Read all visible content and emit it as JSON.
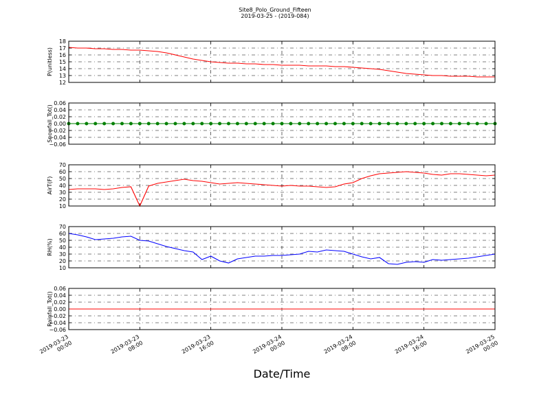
{
  "title": "Site8_Polo_Ground_Fifteen",
  "subtitle": "2019-03-25 - (2019-084)",
  "x_axis": {
    "label": "Date/Time",
    "lim": [
      "2019-03-23 00:00",
      "2019-03-25 00:00"
    ],
    "ticks": [
      "2019-03-23 00:00",
      "2019-03-23 08:00",
      "2019-03-23 16:00",
      "2019-03-24 00:00",
      "2019-03-24 08:00",
      "2019-03-24 16:00",
      "2019-03-25 00:00"
    ]
  },
  "chart_data": [
    {
      "type": "line",
      "ylabel": "P(unitless)",
      "color": "#ff0000",
      "grid": true,
      "ylim": [
        12,
        18
      ],
      "yticks": [
        12,
        13,
        14,
        15,
        16,
        17,
        18
      ],
      "x": [
        "2019-03-23 00:00",
        "2019-03-23 01:00",
        "2019-03-23 02:00",
        "2019-03-23 03:00",
        "2019-03-23 04:00",
        "2019-03-23 05:00",
        "2019-03-23 06:00",
        "2019-03-23 07:00",
        "2019-03-23 08:00",
        "2019-03-23 09:00",
        "2019-03-23 10:00",
        "2019-03-23 11:00",
        "2019-03-23 12:00",
        "2019-03-23 13:00",
        "2019-03-23 14:00",
        "2019-03-23 15:00",
        "2019-03-23 16:00",
        "2019-03-23 17:00",
        "2019-03-23 18:00",
        "2019-03-23 19:00",
        "2019-03-23 20:00",
        "2019-03-23 21:00",
        "2019-03-23 22:00",
        "2019-03-23 23:00",
        "2019-03-24 00:00",
        "2019-03-24 01:00",
        "2019-03-24 02:00",
        "2019-03-24 03:00",
        "2019-03-24 04:00",
        "2019-03-24 05:00",
        "2019-03-24 06:00",
        "2019-03-24 07:00",
        "2019-03-24 08:00",
        "2019-03-24 09:00",
        "2019-03-24 10:00",
        "2019-03-24 11:00",
        "2019-03-24 12:00",
        "2019-03-24 13:00",
        "2019-03-24 14:00",
        "2019-03-24 15:00",
        "2019-03-24 16:00",
        "2019-03-24 17:00",
        "2019-03-24 18:00",
        "2019-03-24 19:00",
        "2019-03-24 20:00",
        "2019-03-24 21:00",
        "2019-03-24 22:00",
        "2019-03-24 23:00",
        "2019-03-25 00:00"
      ],
      "values": [
        17.1,
        17.0,
        17.0,
        16.9,
        16.9,
        16.8,
        16.8,
        16.7,
        16.7,
        16.6,
        16.5,
        16.3,
        16.0,
        15.7,
        15.4,
        15.2,
        15.0,
        14.9,
        14.8,
        14.8,
        14.7,
        14.7,
        14.6,
        14.6,
        14.5,
        14.5,
        14.5,
        14.4,
        14.4,
        14.4,
        14.3,
        14.3,
        14.2,
        14.1,
        14.0,
        13.9,
        13.7,
        13.5,
        13.3,
        13.2,
        13.1,
        13.0,
        13.0,
        12.9,
        12.9,
        12.9,
        12.8,
        12.8,
        12.8
      ]
    },
    {
      "type": "line",
      "ylabel": "Snowfall_Tot()",
      "color": "#008000",
      "grid": true,
      "markers": true,
      "ylim": [
        -0.06,
        0.06
      ],
      "yticks": [
        {
          "value": -0.06,
          "label": "−0.06"
        },
        {
          "value": -0.04,
          "label": "−0.04"
        },
        {
          "value": -0.02,
          "label": "−0.02"
        },
        {
          "value": 0,
          "label": "0.00"
        },
        0.02,
        0.04,
        0.06
      ],
      "x": [
        "2019-03-23 00:00",
        "2019-03-23 01:00",
        "2019-03-23 02:00",
        "2019-03-23 03:00",
        "2019-03-23 04:00",
        "2019-03-23 05:00",
        "2019-03-23 06:00",
        "2019-03-23 07:00",
        "2019-03-23 08:00",
        "2019-03-23 09:00",
        "2019-03-23 10:00",
        "2019-03-23 11:00",
        "2019-03-23 12:00",
        "2019-03-23 13:00",
        "2019-03-23 14:00",
        "2019-03-23 15:00",
        "2019-03-23 16:00",
        "2019-03-23 17:00",
        "2019-03-23 18:00",
        "2019-03-23 19:00",
        "2019-03-23 20:00",
        "2019-03-23 21:00",
        "2019-03-23 22:00",
        "2019-03-23 23:00",
        "2019-03-24 00:00",
        "2019-03-24 01:00",
        "2019-03-24 02:00",
        "2019-03-24 03:00",
        "2019-03-24 04:00",
        "2019-03-24 05:00",
        "2019-03-24 06:00",
        "2019-03-24 07:00",
        "2019-03-24 08:00",
        "2019-03-24 09:00",
        "2019-03-24 10:00",
        "2019-03-24 11:00",
        "2019-03-24 12:00",
        "2019-03-24 13:00",
        "2019-03-24 14:00",
        "2019-03-24 15:00",
        "2019-03-24 16:00",
        "2019-03-24 17:00",
        "2019-03-24 18:00",
        "2019-03-24 19:00",
        "2019-03-24 20:00",
        "2019-03-24 21:00",
        "2019-03-24 22:00",
        "2019-03-24 23:00",
        "2019-03-25 00:00"
      ],
      "values": [
        0,
        0,
        0,
        0,
        0,
        0,
        0,
        0,
        0,
        0,
        0,
        0,
        0,
        0,
        0,
        0,
        0,
        0,
        0,
        0,
        0,
        0,
        0,
        0,
        0,
        0,
        0,
        0,
        0,
        0,
        0,
        0,
        0,
        0,
        0,
        0,
        0,
        0,
        0,
        0,
        0,
        0,
        0,
        0,
        0,
        0,
        0,
        0,
        0
      ]
    },
    {
      "type": "line",
      "ylabel": "AirT(F)",
      "color": "#ff0000",
      "grid": true,
      "ylim": [
        10,
        70
      ],
      "yticks": [
        10,
        20,
        30,
        40,
        50,
        60,
        70
      ],
      "x": [
        "2019-03-23 00:00",
        "2019-03-23 01:00",
        "2019-03-23 02:00",
        "2019-03-23 03:00",
        "2019-03-23 04:00",
        "2019-03-23 05:00",
        "2019-03-23 06:00",
        "2019-03-23 07:00",
        "2019-03-23 08:00",
        "2019-03-23 09:00",
        "2019-03-23 10:00",
        "2019-03-23 11:00",
        "2019-03-23 12:00",
        "2019-03-23 13:00",
        "2019-03-23 14:00",
        "2019-03-23 15:00",
        "2019-03-23 16:00",
        "2019-03-23 17:00",
        "2019-03-23 18:00",
        "2019-03-23 19:00",
        "2019-03-23 20:00",
        "2019-03-23 21:00",
        "2019-03-23 22:00",
        "2019-03-23 23:00",
        "2019-03-24 00:00",
        "2019-03-24 01:00",
        "2019-03-24 02:00",
        "2019-03-24 03:00",
        "2019-03-24 04:00",
        "2019-03-24 05:00",
        "2019-03-24 06:00",
        "2019-03-24 07:00",
        "2019-03-24 08:00",
        "2019-03-24 09:00",
        "2019-03-24 10:00",
        "2019-03-24 11:00",
        "2019-03-24 12:00",
        "2019-03-24 13:00",
        "2019-03-24 14:00",
        "2019-03-24 15:00",
        "2019-03-24 16:00",
        "2019-03-24 17:00",
        "2019-03-24 18:00",
        "2019-03-24 19:00",
        "2019-03-24 20:00",
        "2019-03-24 21:00",
        "2019-03-24 22:00",
        "2019-03-24 23:00",
        "2019-03-25 00:00"
      ],
      "values": [
        34,
        35,
        35,
        35,
        34,
        35,
        37,
        38,
        10,
        39,
        43,
        45,
        47,
        49,
        47,
        46,
        44,
        42,
        43,
        44,
        43,
        42,
        41,
        40,
        39,
        40,
        39,
        39,
        38,
        37,
        38,
        42,
        44,
        50,
        54,
        57,
        58,
        59,
        60,
        59,
        58,
        56,
        55,
        57,
        57,
        56,
        55,
        54,
        55
      ]
    },
    {
      "type": "line",
      "ylabel": "RH(%)",
      "color": "#0000ff",
      "grid": true,
      "ylim": [
        10,
        70
      ],
      "yticks": [
        10,
        20,
        30,
        40,
        50,
        60,
        70
      ],
      "x": [
        "2019-03-23 00:00",
        "2019-03-23 01:00",
        "2019-03-23 02:00",
        "2019-03-23 03:00",
        "2019-03-23 04:00",
        "2019-03-23 05:00",
        "2019-03-23 06:00",
        "2019-03-23 07:00",
        "2019-03-23 08:00",
        "2019-03-23 09:00",
        "2019-03-23 10:00",
        "2019-03-23 11:00",
        "2019-03-23 12:00",
        "2019-03-23 13:00",
        "2019-03-23 14:00",
        "2019-03-23 15:00",
        "2019-03-23 16:00",
        "2019-03-23 17:00",
        "2019-03-23 18:00",
        "2019-03-23 19:00",
        "2019-03-23 20:00",
        "2019-03-23 21:00",
        "2019-03-23 22:00",
        "2019-03-23 23:00",
        "2019-03-24 00:00",
        "2019-03-24 01:00",
        "2019-03-24 02:00",
        "2019-03-24 03:00",
        "2019-03-24 04:00",
        "2019-03-24 05:00",
        "2019-03-24 06:00",
        "2019-03-24 07:00",
        "2019-03-24 08:00",
        "2019-03-24 09:00",
        "2019-03-24 10:00",
        "2019-03-24 11:00",
        "2019-03-24 12:00",
        "2019-03-24 13:00",
        "2019-03-24 14:00",
        "2019-03-24 15:00",
        "2019-03-24 16:00",
        "2019-03-24 17:00",
        "2019-03-24 18:00",
        "2019-03-24 19:00",
        "2019-03-24 20:00",
        "2019-03-24 21:00",
        "2019-03-24 22:00",
        "2019-03-24 23:00",
        "2019-03-25 00:00"
      ],
      "values": [
        60,
        58,
        55,
        51,
        52,
        53,
        55,
        56,
        50,
        49,
        45,
        41,
        38,
        35,
        33,
        22,
        27,
        20,
        17,
        23,
        25,
        27,
        27,
        28,
        28,
        29,
        30,
        34,
        33,
        36,
        35,
        34,
        30,
        26,
        23,
        25,
        16,
        15,
        18,
        19,
        18,
        22,
        21,
        22,
        23,
        24,
        26,
        28,
        30
      ]
    },
    {
      "type": "line",
      "ylabel": "Rainfall_Tot()",
      "color": "#ff0000",
      "grid": true,
      "ylim": [
        -0.06,
        0.06
      ],
      "yticks": [
        {
          "value": -0.06,
          "label": "−0.06"
        },
        {
          "value": -0.04,
          "label": "−0.04"
        },
        {
          "value": -0.02,
          "label": "−0.02"
        },
        {
          "value": 0,
          "label": "0.00"
        },
        0.02,
        0.04,
        0.06
      ],
      "x": [
        "2019-03-23 00:00",
        "2019-03-23 01:00",
        "2019-03-23 02:00",
        "2019-03-23 03:00",
        "2019-03-23 04:00",
        "2019-03-23 05:00",
        "2019-03-23 06:00",
        "2019-03-23 07:00",
        "2019-03-23 08:00",
        "2019-03-23 09:00",
        "2019-03-23 10:00",
        "2019-03-23 11:00",
        "2019-03-23 12:00",
        "2019-03-23 13:00",
        "2019-03-23 14:00",
        "2019-03-23 15:00",
        "2019-03-23 16:00",
        "2019-03-23 17:00",
        "2019-03-23 18:00",
        "2019-03-23 19:00",
        "2019-03-23 20:00",
        "2019-03-23 21:00",
        "2019-03-23 22:00",
        "2019-03-23 23:00",
        "2019-03-24 00:00",
        "2019-03-24 01:00",
        "2019-03-24 02:00",
        "2019-03-24 03:00",
        "2019-03-24 04:00",
        "2019-03-24 05:00",
        "2019-03-24 06:00",
        "2019-03-24 07:00",
        "2019-03-24 08:00",
        "2019-03-24 09:00",
        "2019-03-24 10:00",
        "2019-03-24 11:00",
        "2019-03-24 12:00",
        "2019-03-24 13:00",
        "2019-03-24 14:00",
        "2019-03-24 15:00",
        "2019-03-24 16:00",
        "2019-03-24 17:00",
        "2019-03-24 18:00",
        "2019-03-24 19:00",
        "2019-03-24 20:00",
        "2019-03-24 21:00",
        "2019-03-24 22:00",
        "2019-03-24 23:00",
        "2019-03-25 00:00"
      ],
      "values": [
        0,
        0,
        0,
        0,
        0,
        0,
        0,
        0,
        0,
        0,
        0,
        0,
        0,
        0,
        0,
        0,
        0,
        0,
        0,
        0,
        0,
        0,
        0,
        0,
        0,
        0,
        0,
        0,
        0,
        0,
        0,
        0,
        0,
        0,
        0,
        0,
        0,
        0,
        0,
        0,
        0,
        0,
        0,
        0,
        0,
        0,
        0,
        0,
        0
      ]
    }
  ]
}
